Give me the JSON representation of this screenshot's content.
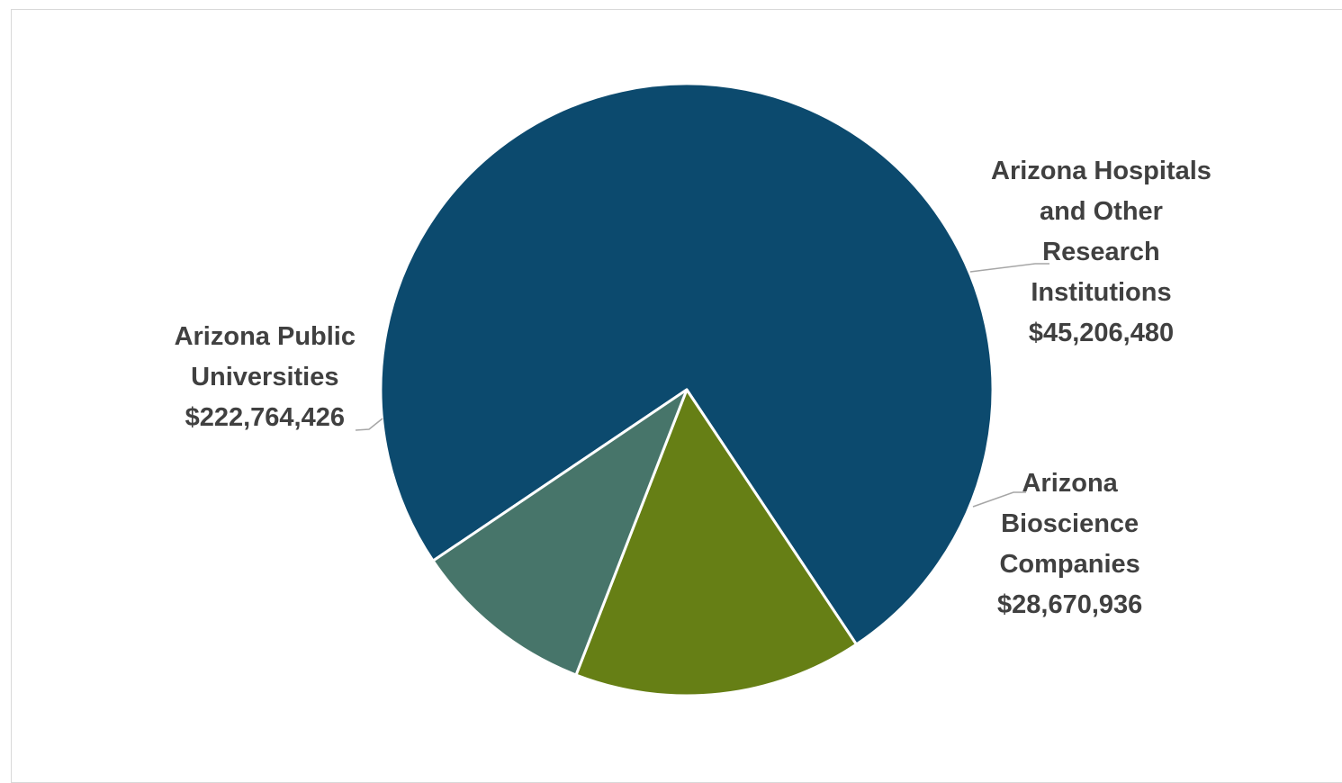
{
  "chart_data": {
    "type": "pie",
    "title": "",
    "start_angle_deg": 236,
    "slice_border_color": "#ffffff",
    "leader_line_color": "#a6a6a6",
    "slices": [
      {
        "label_lines": [
          "Arizona Public",
          "Universities"
        ],
        "value": 222764426,
        "value_label": "$222,764,426",
        "color": "#0c4a6e"
      },
      {
        "label_lines": [
          "Arizona Hospitals",
          "and Other",
          "Research",
          "Institutions"
        ],
        "value": 45206480,
        "value_label": "$45,206,480",
        "color": "#667f15"
      },
      {
        "label_lines": [
          "Arizona",
          "Bioscience",
          "Companies"
        ],
        "value": 28670936,
        "value_label": "$28,670,936",
        "color": "#47756a"
      }
    ]
  }
}
